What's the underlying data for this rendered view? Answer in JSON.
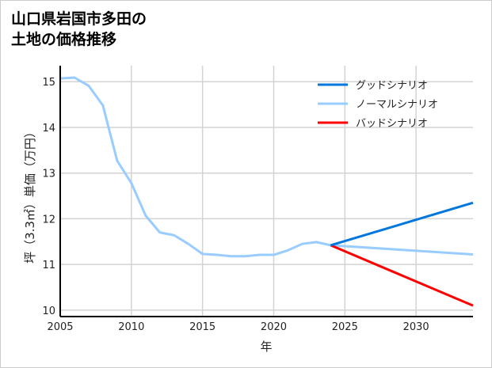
{
  "chart_data": {
    "type": "line",
    "title": "山口県岩国市多田の\n土地の価格推移",
    "xlabel": "年",
    "ylabel": "坪（3.3㎡）単価（万円）",
    "xlim": [
      2005,
      2034
    ],
    "ylim": [
      9.86,
      15.35
    ],
    "xticks": [
      2005,
      2010,
      2015,
      2020,
      2025,
      2030
    ],
    "yticks": [
      10,
      11,
      12,
      13,
      14,
      15
    ],
    "grid": true,
    "legend_position": "top-right",
    "series": [
      {
        "name": "グッドシナリオ",
        "color": "#0077dd",
        "x": [
          2024,
          2034
        ],
        "y": [
          11.42,
          12.35
        ]
      },
      {
        "name": "ノーマルシナリオ",
        "color": "#99ccff",
        "x": [
          2005,
          2006,
          2007,
          2008,
          2009,
          2010,
          2011,
          2012,
          2013,
          2014,
          2015,
          2016,
          2017,
          2018,
          2019,
          2020,
          2021,
          2022,
          2023,
          2024,
          2034
        ],
        "y": [
          15.07,
          15.09,
          14.91,
          14.48,
          13.27,
          12.78,
          12.07,
          11.7,
          11.64,
          11.45,
          11.23,
          11.21,
          11.18,
          11.18,
          11.21,
          11.21,
          11.31,
          11.45,
          11.49,
          11.42,
          11.22
        ]
      },
      {
        "name": "バッドシナリオ",
        "color": "#ff0000",
        "x": [
          2024,
          2034
        ],
        "y": [
          11.42,
          10.1
        ]
      }
    ]
  }
}
